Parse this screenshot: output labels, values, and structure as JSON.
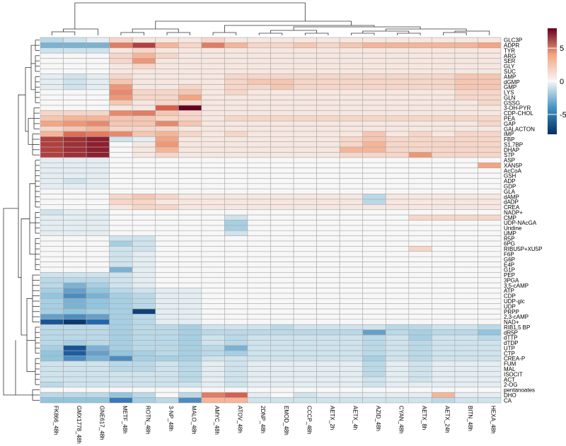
{
  "chart_data": {
    "type": "heatmap",
    "title": "",
    "columns": [
      "FK866_48h",
      "GMX1778_48h",
      "GNE617_48h",
      "METF_48h",
      "ROTN_48h",
      "3-NP_48h",
      "MALO_48h",
      "AMYC_48h",
      "ATOV_48h",
      "2DNP_48h",
      "EMOD_48h",
      "CCCP_48h",
      "AETX_2h",
      "AETX_4h",
      "AZID_48h",
      "CYAN_48h",
      "AETX_8h",
      "AETX_24h",
      "BITN_48h",
      "HEXA_48h"
    ],
    "rows": [
      "GLC3P",
      "ADPR",
      "TYR",
      "ARG",
      "SER",
      "GLY",
      "SUC",
      "AMP",
      "dGMP",
      "GMP",
      "LYS",
      "GLN",
      "GSSG",
      "3-OH-PYR",
      "CDP-CHOL",
      "PEA",
      "GAP",
      "GALACTON",
      "IMP",
      "FBP",
      "S1,7BP",
      "DHAP",
      "S7P",
      "ASP",
      "XAN5P",
      "AcCoA",
      "GSH",
      "ADP",
      "GDP",
      "GLA",
      "dAMP",
      "dADP",
      "CREA",
      "NADP+",
      "CMP",
      "UDP-NAcGA",
      "Uridine",
      "UMP",
      "R5P",
      "6PG",
      "RIBU5P+XU5P",
      "F6P",
      "G6P",
      "E4P",
      "G1P",
      "PEP",
      "3PGA",
      "3,5-cAMP",
      "ATP",
      "CDP",
      "UDP-glc",
      "UDP",
      "PRPP",
      "2,3-cAMP",
      "NAD+",
      "RIB1,5 BP",
      "dR5P",
      "dTTP",
      "dTDP",
      "UTP",
      "CTP",
      "CREA-P",
      "FUM",
      "MAL",
      "ISOCIT",
      "ACT",
      "2-OG",
      "pentanoates",
      "DHO",
      "CA"
    ],
    "values": [
      [
        -1.5,
        -1,
        -0.5,
        1,
        0.5,
        0.5,
        0.5,
        1,
        0.5,
        0.5,
        0.5,
        0.5,
        0.5,
        0.5,
        0.5,
        0.5,
        0.5,
        0.5,
        0.5,
        0.5
      ],
      [
        -3,
        -3,
        -3,
        4,
        6,
        2,
        1,
        4,
        2,
        1,
        1,
        1.5,
        1,
        1.5,
        2,
        2,
        2,
        2,
        2,
        2.5
      ],
      [
        -1,
        -1,
        -1,
        0.5,
        1,
        0.5,
        0.5,
        0.5,
        0.5,
        0.5,
        0.5,
        0.5,
        0.5,
        0.5,
        0.5,
        0.5,
        0.5,
        0.5,
        0.5,
        0.5
      ],
      [
        0,
        0,
        0,
        1,
        2,
        1,
        0.5,
        0.5,
        0.5,
        0.5,
        0.5,
        0.5,
        0.5,
        0.5,
        0.5,
        0.5,
        0.5,
        0.5,
        0.5,
        0.5
      ],
      [
        0,
        0,
        0,
        1,
        3,
        0.5,
        0.5,
        0.5,
        0.5,
        0.5,
        0.5,
        0.5,
        0.5,
        0.5,
        0.5,
        0.5,
        0.5,
        0.5,
        0.5,
        0.5
      ],
      [
        0,
        0,
        0,
        0.5,
        1,
        0.5,
        0.5,
        0.5,
        0.5,
        0.5,
        0.5,
        0.5,
        0.5,
        0.5,
        0.5,
        0.5,
        0.5,
        0.5,
        0.5,
        0.5
      ],
      [
        0,
        0,
        0,
        0.5,
        0.5,
        0.5,
        0.5,
        0.5,
        0.5,
        0.5,
        0.5,
        0.5,
        0.5,
        0.5,
        0.5,
        0.5,
        0.5,
        0.5,
        0.5,
        0.5
      ],
      [
        -0.5,
        -1,
        -0.5,
        1,
        0.5,
        0.5,
        0.5,
        0.5,
        1,
        1,
        1,
        1,
        1,
        1,
        1,
        1,
        1,
        1,
        1.5,
        1.5
      ],
      [
        -0.5,
        -1,
        -0.5,
        1.5,
        0.5,
        0.5,
        0.5,
        0.5,
        1,
        1.5,
        1.5,
        1,
        1,
        1,
        1,
        1,
        1,
        1,
        1.5,
        1.5
      ],
      [
        -0.5,
        -1,
        -0.5,
        3,
        0.5,
        0.5,
        1,
        0.5,
        1,
        1,
        1.5,
        1,
        1,
        1,
        1,
        1,
        1,
        1,
        1.5,
        1.5
      ],
      [
        0,
        0,
        0,
        3.5,
        1,
        1,
        1.5,
        0.5,
        1,
        0.5,
        0.5,
        0.5,
        0.5,
        0.5,
        0.5,
        0.5,
        0.5,
        0.5,
        1,
        1
      ],
      [
        0,
        0,
        0,
        3,
        1,
        1,
        2.5,
        0.5,
        0.5,
        0.5,
        0.5,
        0.5,
        0.5,
        0.5,
        0.5,
        0.5,
        0.5,
        0.5,
        1,
        1
      ],
      [
        0,
        0,
        0,
        1.5,
        0.5,
        1,
        1,
        0.5,
        0.5,
        0.5,
        0.5,
        0.5,
        0.5,
        0.5,
        0.5,
        0.5,
        0.5,
        0.5,
        0.5,
        1
      ],
      [
        0,
        0,
        0,
        0.5,
        0.5,
        5,
        8,
        0.5,
        0.5,
        0.5,
        0.5,
        0.5,
        0.5,
        0.5,
        0.5,
        0.5,
        0.5,
        0.5,
        0.5,
        0.5
      ],
      [
        1,
        1,
        1,
        3.5,
        4,
        1.5,
        1,
        0.5,
        0.5,
        0.5,
        0.5,
        0.5,
        0.5,
        0.5,
        0.5,
        0.5,
        0.5,
        0.5,
        0.5,
        0.5
      ],
      [
        1.5,
        2,
        2,
        1.5,
        1.5,
        1,
        1,
        0.5,
        1,
        1,
        1,
        1,
        1,
        1,
        1,
        1,
        1,
        1,
        1,
        1
      ],
      [
        2.5,
        3,
        3.5,
        1.5,
        1.5,
        3.5,
        1.5,
        0.5,
        0.5,
        0.5,
        0.5,
        0.5,
        0.5,
        0.5,
        0.5,
        0.5,
        0.5,
        0.5,
        0.5,
        1
      ],
      [
        1,
        1.5,
        2,
        1,
        1,
        1,
        0.5,
        0.5,
        0.5,
        0.5,
        0.5,
        0.5,
        0.5,
        0.5,
        0.5,
        0.5,
        0.5,
        0.5,
        0.5,
        0.5
      ],
      [
        2,
        4.5,
        4,
        3.5,
        1.5,
        2,
        1,
        0.5,
        1,
        0.5,
        0.5,
        0.5,
        0.5,
        0.5,
        1.5,
        0.5,
        1,
        0.5,
        1,
        1
      ],
      [
        6,
        6.5,
        7,
        -1,
        -0.5,
        2.5,
        0.5,
        0.5,
        0.5,
        0.5,
        0.5,
        0.5,
        0.5,
        1,
        1.5,
        1,
        1,
        1,
        1,
        1
      ],
      [
        6,
        6.5,
        7,
        0,
        0.5,
        3,
        0.5,
        0.5,
        0.5,
        0.5,
        0.5,
        0.5,
        0.5,
        1,
        2,
        1,
        1,
        1,
        1,
        1
      ],
      [
        6,
        6.5,
        7,
        0,
        0.5,
        2,
        0.5,
        0.5,
        0.5,
        0.5,
        0.5,
        0.5,
        0.5,
        2,
        2,
        1,
        1,
        1,
        1,
        1
      ],
      [
        6,
        6.5,
        7,
        0,
        0.5,
        1,
        0.5,
        0.5,
        0.5,
        0.5,
        0.5,
        0.5,
        0.5,
        1,
        1,
        1,
        3,
        1,
        1,
        1
      ],
      [
        -0.5,
        -0.5,
        -0.5,
        0,
        0,
        0,
        0,
        0,
        0,
        0,
        0,
        0,
        0,
        0,
        0,
        0,
        0,
        0,
        0,
        0
      ],
      [
        -0.5,
        -0.5,
        -0.5,
        0,
        0,
        0,
        0,
        0,
        0,
        0,
        0,
        0,
        0,
        0,
        0,
        0,
        0,
        0,
        0,
        2.5
      ],
      [
        -0.5,
        -0.5,
        -0.5,
        0,
        0,
        0,
        0,
        0,
        0,
        0,
        0,
        0,
        0,
        0,
        0,
        0,
        0,
        0,
        0,
        0
      ],
      [
        -0.5,
        -0.5,
        -0.5,
        0,
        0,
        0,
        0,
        0,
        0,
        0,
        0,
        0,
        0,
        0,
        0,
        0,
        0,
        0,
        0,
        0
      ],
      [
        -0.5,
        -1,
        -0.5,
        0,
        0,
        0,
        0,
        0,
        0,
        0,
        0,
        0,
        0,
        0,
        0,
        0,
        0,
        0,
        0,
        0
      ],
      [
        -0.5,
        -0.5,
        -0.5,
        0,
        0,
        0,
        0,
        0,
        0,
        0,
        0,
        0,
        0,
        0,
        0,
        0,
        0,
        0,
        0,
        0
      ],
      [
        0,
        0,
        0,
        0,
        0,
        0,
        0,
        0,
        0,
        0,
        0,
        0,
        0,
        0,
        0,
        0,
        0,
        0,
        0,
        0
      ],
      [
        0,
        0,
        0,
        1,
        1.5,
        1,
        0.5,
        0.5,
        0.5,
        0.5,
        0.5,
        0.5,
        0.5,
        0.5,
        -1.5,
        0.5,
        0.5,
        0.5,
        0.5,
        0.5
      ],
      [
        0,
        0,
        0,
        1,
        1,
        0.5,
        0.5,
        0.5,
        0.5,
        0.5,
        0.5,
        0.5,
        0.5,
        0.5,
        -1.5,
        0.5,
        0.5,
        0.5,
        0.5,
        0.5
      ],
      [
        0,
        0,
        0,
        0.5,
        1,
        1,
        0.5,
        0.5,
        0.5,
        0.5,
        0.5,
        0.5,
        0.5,
        0.5,
        0.5,
        0.5,
        0.5,
        0.5,
        0.5,
        0.5
      ],
      [
        -1,
        -0.5,
        -0.5,
        0,
        0,
        0,
        0,
        0,
        0,
        0,
        0,
        0,
        0,
        0,
        0,
        0,
        0,
        0,
        0,
        0
      ],
      [
        -0.5,
        -0.5,
        -0.5,
        0,
        0,
        0,
        0,
        0,
        -1,
        0,
        0,
        0,
        0,
        0,
        0,
        0,
        1,
        1,
        1,
        1
      ],
      [
        -0.5,
        -0.5,
        -0.5,
        0,
        0,
        0,
        0,
        0,
        -2,
        0,
        0,
        0,
        0,
        0,
        0,
        0,
        0,
        0,
        0,
        0
      ],
      [
        -0.5,
        -0.5,
        -0.5,
        0,
        0,
        0,
        0,
        0,
        -2,
        0,
        0,
        0,
        0,
        0,
        0,
        0,
        0,
        0,
        0,
        0
      ],
      [
        -0.5,
        -0.5,
        -0.5,
        0,
        0,
        0,
        0,
        0,
        -1,
        0,
        0,
        0,
        0,
        0,
        0,
        0,
        0,
        0,
        0,
        0
      ],
      [
        0,
        0,
        0,
        -1,
        -1,
        0,
        0,
        0,
        0,
        0,
        0,
        0,
        0,
        0,
        0,
        0,
        0,
        0,
        0,
        0
      ],
      [
        0,
        0,
        0,
        -2,
        -1,
        0,
        0,
        0,
        0,
        0,
        0,
        0,
        0,
        0,
        0,
        0,
        0,
        0,
        0,
        0
      ],
      [
        0,
        0,
        0,
        -1,
        -1,
        0,
        0,
        0,
        0,
        0,
        0,
        0,
        0,
        0,
        0,
        0,
        1,
        0,
        0,
        0
      ],
      [
        0,
        0,
        0,
        -1,
        -0.5,
        0,
        0,
        0,
        0,
        0,
        0,
        0,
        0,
        0,
        0,
        0,
        0,
        0,
        0,
        0
      ],
      [
        0,
        0,
        0,
        -1,
        -0.5,
        0,
        0,
        0,
        0,
        0,
        0,
        0,
        0,
        0,
        0,
        0,
        0,
        0,
        0,
        0
      ],
      [
        0,
        0,
        0,
        -1,
        -0.5,
        0,
        0,
        0,
        0,
        0,
        0,
        0,
        0,
        0,
        0,
        0,
        0,
        0,
        0,
        0
      ],
      [
        0,
        0,
        0,
        -3,
        -0.5,
        0,
        0,
        0,
        0,
        0,
        0,
        0,
        0,
        0,
        0,
        0,
        0,
        0,
        0,
        0
      ],
      [
        -1,
        -1,
        -1,
        -1,
        -0.5,
        0,
        0,
        0,
        0,
        0,
        0,
        0,
        0,
        0,
        0,
        0,
        0,
        0,
        0,
        0
      ],
      [
        -1.5,
        -1.5,
        -1.5,
        -1,
        -0.5,
        0,
        0,
        0,
        0,
        0,
        0,
        0,
        0,
        0,
        0,
        0,
        0,
        0,
        0,
        0
      ],
      [
        -1.5,
        -3,
        -2,
        -1,
        -0.5,
        0,
        0,
        0,
        0,
        0,
        0,
        0,
        0,
        0,
        0,
        0,
        0,
        0,
        0,
        0
      ],
      [
        -2,
        -3.5,
        -2.5,
        -1.5,
        -1,
        -0.5,
        -0.5,
        0,
        0,
        0,
        0,
        0,
        0,
        0,
        0,
        0,
        0,
        0,
        0,
        0
      ],
      [
        -2.5,
        -4,
        -3,
        -2,
        -1.5,
        -0.5,
        -0.5,
        0,
        0,
        0,
        0,
        0,
        0,
        0,
        0,
        0,
        0,
        0,
        0,
        0
      ],
      [
        -2,
        -3,
        -2.5,
        -2,
        -1.5,
        -0.5,
        -0.5,
        0,
        0,
        0,
        0,
        0,
        0,
        0,
        0,
        0,
        0,
        0,
        0,
        0
      ],
      [
        -2,
        -3,
        -2.5,
        -2,
        -1.5,
        -0.5,
        -0.5,
        0,
        0,
        0,
        0,
        0,
        0,
        0,
        0,
        0,
        0,
        0,
        0,
        0
      ],
      [
        -2,
        -2.5,
        -2,
        -2,
        -7,
        -0.5,
        -0.5,
        0,
        0,
        0,
        0,
        0,
        0,
        0,
        0,
        0,
        0,
        0,
        0,
        0
      ],
      [
        -3.5,
        -4,
        -3.5,
        -2,
        -1.5,
        -0.5,
        -0.5,
        0,
        0,
        0,
        0,
        0,
        0,
        0,
        0,
        0,
        0,
        0,
        0,
        0
      ],
      [
        -6,
        -7.5,
        -5,
        -2,
        -1.5,
        -0.5,
        -0.5,
        0,
        0,
        0,
        0,
        0,
        0,
        0,
        0,
        0,
        0,
        0,
        0,
        0
      ],
      [
        -1.5,
        -1.5,
        -1.5,
        -2,
        -1.5,
        -1.5,
        -2,
        -1,
        -1,
        -1,
        -1.5,
        -1,
        -1,
        -1,
        -1,
        -1.5,
        -1.5,
        -1,
        -1,
        -1.5
      ],
      [
        -1.5,
        -1.5,
        -1.5,
        -2,
        -1.5,
        -1.5,
        -2,
        -1.5,
        -1.5,
        -1.5,
        -1.5,
        -1.5,
        -1.5,
        -1.5,
        -3.5,
        -1.5,
        -2,
        -1.5,
        -1.5,
        -2.5
      ],
      [
        -1.5,
        -1.5,
        -1.5,
        -2,
        -1.5,
        -1.5,
        -2,
        -1,
        -1.5,
        -1,
        -1,
        -1,
        -1,
        -1,
        -1.5,
        -1,
        -2,
        -1,
        -1,
        -1.5
      ],
      [
        -1.5,
        -2,
        -1.5,
        -2,
        -1.5,
        -1.5,
        -2,
        -1,
        -1.5,
        -1,
        -1,
        -1,
        -1,
        -1,
        -1.5,
        -1,
        -1.5,
        -1,
        -1,
        -1
      ],
      [
        -2,
        -6,
        -3,
        -2,
        -1.5,
        -1.5,
        -2,
        -1.5,
        -3,
        -1,
        -1,
        -1,
        -1,
        -1,
        -1.5,
        -1,
        -1.5,
        -1,
        -1,
        -1
      ],
      [
        -2.5,
        -5.5,
        -3.5,
        -2.5,
        -2,
        -1.5,
        -2,
        -1.5,
        -2,
        -1,
        -1,
        -1,
        -1,
        -1,
        -1.5,
        -1,
        -1.5,
        -1,
        -1,
        -1
      ],
      [
        -2.5,
        -4,
        -3,
        -4,
        -2,
        -2,
        -2,
        -1,
        -1,
        -1,
        -1,
        -1,
        -1,
        -1,
        -2,
        -1,
        -1.5,
        -1,
        -1,
        -1
      ],
      [
        -1,
        -1,
        -1,
        -1.5,
        -1.5,
        -1,
        -1.5,
        -0.5,
        -1,
        -0.5,
        -0.5,
        -0.5,
        -0.5,
        -0.5,
        -1.5,
        -0.5,
        -1,
        -0.5,
        -0.5,
        -0.5
      ],
      [
        -1,
        -1,
        -1,
        -1.5,
        -1.5,
        -1,
        -1.5,
        -0.5,
        -1,
        -0.5,
        -0.5,
        -0.5,
        -0.5,
        -0.5,
        -1.5,
        -0.5,
        -1,
        -0.5,
        -0.5,
        -0.5
      ],
      [
        -1,
        -1,
        -1,
        -1,
        -1,
        -1,
        -1.5,
        -0.5,
        -1,
        -0.5,
        -0.5,
        -0.5,
        -0.5,
        -0.5,
        -1.5,
        -0.5,
        -1,
        -0.5,
        -0.5,
        -0.5
      ],
      [
        -1,
        -1,
        -1,
        -1,
        -1,
        -1,
        -1.5,
        -0.5,
        -1,
        -0.5,
        -0.5,
        -0.5,
        -0.5,
        -0.5,
        -1,
        -0.5,
        -1,
        -0.5,
        -0.5,
        -0.5
      ],
      [
        -1.5,
        -1,
        -1,
        -1,
        -1,
        -1,
        -1,
        -0.5,
        -1,
        -0.5,
        -0.5,
        -0.5,
        -0.5,
        -0.5,
        -1,
        -0.5,
        -0.5,
        -0.5,
        -0.5,
        -0.5
      ],
      [
        0,
        0,
        0,
        0,
        0,
        0,
        0,
        0,
        0,
        0,
        0,
        0,
        0,
        0,
        0,
        0,
        0,
        0,
        0,
        0
      ],
      [
        -1.5,
        -1.5,
        -1.5,
        -2.5,
        -1.5,
        0,
        -1.5,
        4,
        5,
        -0.5,
        0,
        -1,
        -0.5,
        -0.5,
        -0.5,
        -0.5,
        -0.5,
        2,
        -0.5,
        -0.5
      ],
      [
        -2.5,
        -2.5,
        -2.5,
        -4.5,
        -2,
        -1.5,
        -4,
        2,
        2,
        -1,
        -1,
        -1,
        -1,
        -1,
        -1,
        -1,
        -1,
        -1.5,
        -1,
        -1
      ]
    ],
    "colorbar": {
      "min": -8,
      "max": 8,
      "ticks": [
        -5,
        0,
        5
      ],
      "tick_labels": [
        "-5",
        "0",
        "5"
      ]
    },
    "colors": {
      "low": "#2c6fb0",
      "mid": "#f7f7f7",
      "high": "#b2182b",
      "grid": "#aaaaaa"
    },
    "row_dendrogram": true,
    "column_dendrogram": true
  }
}
